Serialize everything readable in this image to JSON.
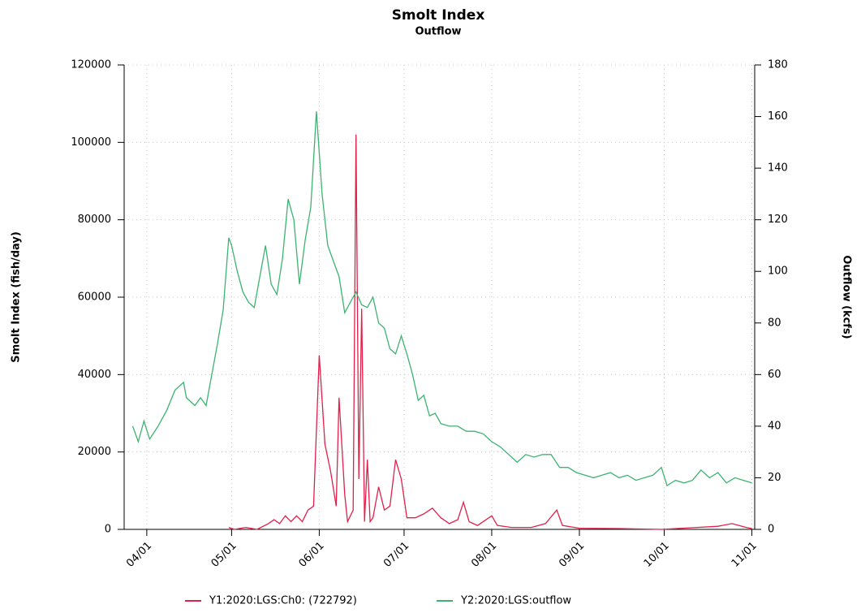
{
  "chart_data": {
    "type": "line",
    "title": "Smolt Index",
    "subtitle": "Outflow",
    "y_label": "Smolt Index (fish/day)",
    "y2_label": "Outflow (kcfs)",
    "xlim": [
      "03/24",
      "11/02"
    ],
    "xticks": [
      "04/01",
      "05/01",
      "06/01",
      "07/01",
      "08/01",
      "09/01",
      "10/01",
      "11/01"
    ],
    "ylim": [
      0,
      120000
    ],
    "yticks": [
      0,
      20000,
      40000,
      60000,
      80000,
      100000,
      120000
    ],
    "y2lim": [
      0,
      180
    ],
    "y2ticks": [
      0,
      20,
      40,
      60,
      80,
      100,
      120,
      140,
      160,
      180
    ],
    "grid": true,
    "legend": "bottom",
    "series": [
      {
        "name": "Y1:2020:LGS:Ch0: (722792)",
        "color": "#e0204a",
        "x": [
          "04/30",
          "05/02",
          "05/06",
          "05/10",
          "05/14",
          "05/16",
          "05/18",
          "05/20",
          "05/22",
          "05/24",
          "05/26",
          "05/28",
          "05/30",
          "06/01",
          "06/03",
          "06/05",
          "06/07",
          "06/08",
          "06/10",
          "06/11",
          "06/13",
          "06/14",
          "06/15",
          "06/16",
          "06/17",
          "06/18",
          "06/19",
          "06/20",
          "06/22",
          "06/24",
          "06/26",
          "06/28",
          "06/30",
          "07/02",
          "07/05",
          "07/08",
          "07/11",
          "07/14",
          "07/17",
          "07/20",
          "07/22",
          "07/24",
          "07/27",
          "07/30",
          "08/01",
          "08/03",
          "08/08",
          "08/15",
          "08/20",
          "08/24",
          "08/26",
          "09/01",
          "09/15",
          "09/30",
          "10/10",
          "10/20",
          "10/25",
          "10/30",
          "11/01"
        ],
        "values": [
          500,
          0,
          500,
          0,
          1500,
          2500,
          1500,
          3500,
          2000,
          3500,
          2000,
          5000,
          6000,
          45000,
          22000,
          15000,
          6000,
          34000,
          9000,
          2000,
          5000,
          102000,
          13000,
          57000,
          2000,
          18000,
          2000,
          3000,
          11000,
          5000,
          6000,
          18000,
          13000,
          3000,
          3000,
          4000,
          5500,
          3000,
          1500,
          2500,
          7000,
          2000,
          1000,
          2500,
          3500,
          1000,
          500,
          500,
          1500,
          5000,
          1000,
          300,
          200,
          0,
          400,
          800,
          1500,
          500,
          200
        ]
      },
      {
        "name": "Y2:2020:LGS:outflow",
        "color": "#3cb371",
        "axis": "y2",
        "x": [
          "03/27",
          "03/29",
          "03/31",
          "04/02",
          "04/05",
          "04/08",
          "04/11",
          "04/14",
          "04/15",
          "04/18",
          "04/20",
          "04/22",
          "04/24",
          "04/26",
          "04/28",
          "04/30",
          "05/01",
          "05/03",
          "05/05",
          "05/07",
          "05/09",
          "05/11",
          "05/13",
          "05/15",
          "05/17",
          "05/19",
          "05/21",
          "05/23",
          "05/25",
          "05/27",
          "05/29",
          "05/31",
          "06/02",
          "06/04",
          "06/06",
          "06/08",
          "06/10",
          "06/12",
          "06/14",
          "06/16",
          "06/18",
          "06/20",
          "06/22",
          "06/24",
          "06/26",
          "06/28",
          "06/30",
          "07/02",
          "07/04",
          "07/06",
          "07/08",
          "07/10",
          "07/12",
          "07/14",
          "07/17",
          "07/20",
          "07/23",
          "07/26",
          "07/29",
          "08/01",
          "08/04",
          "08/07",
          "08/10",
          "08/13",
          "08/16",
          "08/19",
          "08/22",
          "08/25",
          "08/28",
          "08/31",
          "09/03",
          "09/06",
          "09/09",
          "09/12",
          "09/15",
          "09/18",
          "09/21",
          "09/24",
          "09/27",
          "09/30",
          "10/02",
          "10/05",
          "10/08",
          "10/11",
          "10/14",
          "10/17",
          "10/20",
          "10/23",
          "10/26",
          "10/29",
          "11/01"
        ],
        "values": [
          40,
          34,
          42,
          35,
          40,
          46,
          54,
          57,
          51,
          48,
          51,
          48,
          60,
          72,
          85,
          113,
          110,
          100,
          92,
          88,
          86,
          98,
          110,
          95,
          91,
          105,
          128,
          120,
          95,
          112,
          125,
          162,
          130,
          110,
          104,
          98,
          84,
          88,
          92,
          87,
          86,
          90,
          80,
          78,
          70,
          68,
          75,
          68,
          60,
          50,
          52,
          44,
          45,
          41,
          40,
          40,
          38,
          38,
          37,
          34,
          32,
          29,
          26,
          29,
          28,
          29,
          29,
          24,
          24,
          22,
          21,
          20,
          21,
          22,
          20,
          21,
          19,
          20,
          21,
          24,
          17,
          19,
          18,
          19,
          23,
          20,
          22,
          18,
          20,
          19,
          18
        ]
      }
    ]
  }
}
